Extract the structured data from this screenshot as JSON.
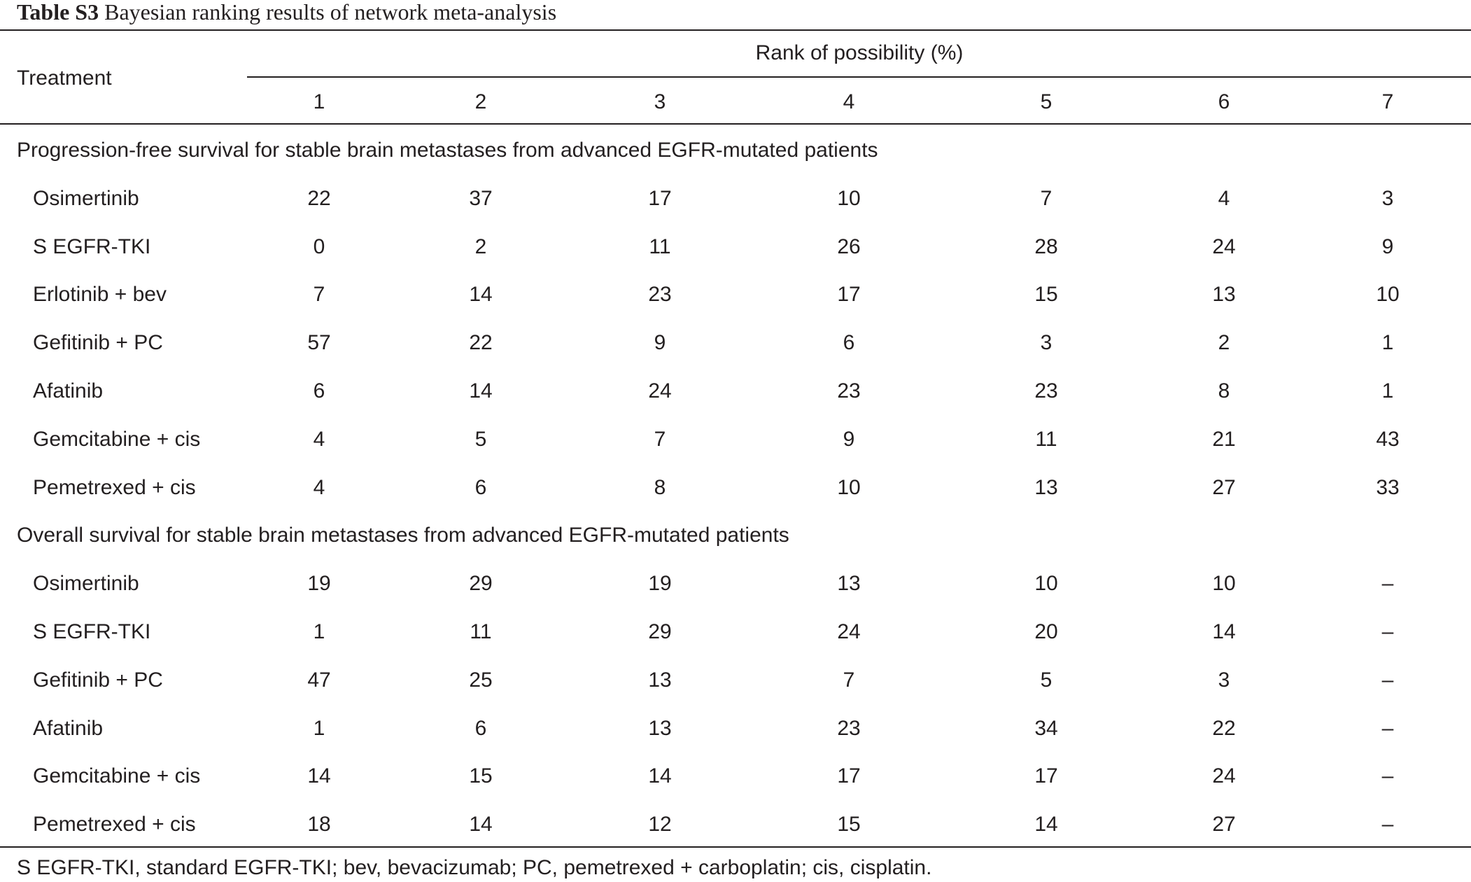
{
  "caption": {
    "label": "Table S3",
    "text": "Bayesian ranking results of network meta-analysis"
  },
  "header": {
    "treatment": "Treatment",
    "rank_group": "Rank of possibility (%)",
    "ranks": [
      "1",
      "2",
      "3",
      "4",
      "5",
      "6",
      "7"
    ]
  },
  "sections": [
    {
      "title": "Progression-free survival for stable brain metastases from advanced EGFR-mutated patients",
      "rows": [
        {
          "treatment": "Osimertinib",
          "values": [
            "22",
            "37",
            "17",
            "10",
            "7",
            "4",
            "3"
          ]
        },
        {
          "treatment": "S EGFR-TKI",
          "values": [
            "0",
            "2",
            "11",
            "26",
            "28",
            "24",
            "9"
          ]
        },
        {
          "treatment": "Erlotinib + bev",
          "values": [
            "7",
            "14",
            "23",
            "17",
            "15",
            "13",
            "10"
          ]
        },
        {
          "treatment": "Gefitinib + PC",
          "values": [
            "57",
            "22",
            "9",
            "6",
            "3",
            "2",
            "1"
          ]
        },
        {
          "treatment": "Afatinib",
          "values": [
            "6",
            "14",
            "24",
            "23",
            "23",
            "8",
            "1"
          ]
        },
        {
          "treatment": "Gemcitabine + cis",
          "values": [
            "4",
            "5",
            "7",
            "9",
            "11",
            "21",
            "43"
          ]
        },
        {
          "treatment": "Pemetrexed + cis",
          "values": [
            "4",
            "6",
            "8",
            "10",
            "13",
            "27",
            "33"
          ]
        }
      ]
    },
    {
      "title": "Overall survival for stable brain metastases from advanced EGFR-mutated patients",
      "rows": [
        {
          "treatment": "Osimertinib",
          "values": [
            "19",
            "29",
            "19",
            "13",
            "10",
            "10",
            "–"
          ]
        },
        {
          "treatment": "S EGFR-TKI",
          "values": [
            "1",
            "11",
            "29",
            "24",
            "20",
            "14",
            "–"
          ]
        },
        {
          "treatment": "Gefitinib + PC",
          "values": [
            "47",
            "25",
            "13",
            "7",
            "5",
            "3",
            "–"
          ]
        },
        {
          "treatment": "Afatinib",
          "values": [
            "1",
            "6",
            "13",
            "23",
            "34",
            "22",
            "–"
          ]
        },
        {
          "treatment": "Gemcitabine + cis",
          "values": [
            "14",
            "15",
            "14",
            "17",
            "17",
            "24",
            "–"
          ]
        },
        {
          "treatment": "Pemetrexed + cis",
          "values": [
            "18",
            "14",
            "12",
            "15",
            "14",
            "27",
            "–"
          ]
        }
      ]
    }
  ],
  "footnote": "S EGFR-TKI, standard EGFR-TKI; bev, bevacizumab; PC, pemetrexed + carboplatin; cis, cisplatin."
}
